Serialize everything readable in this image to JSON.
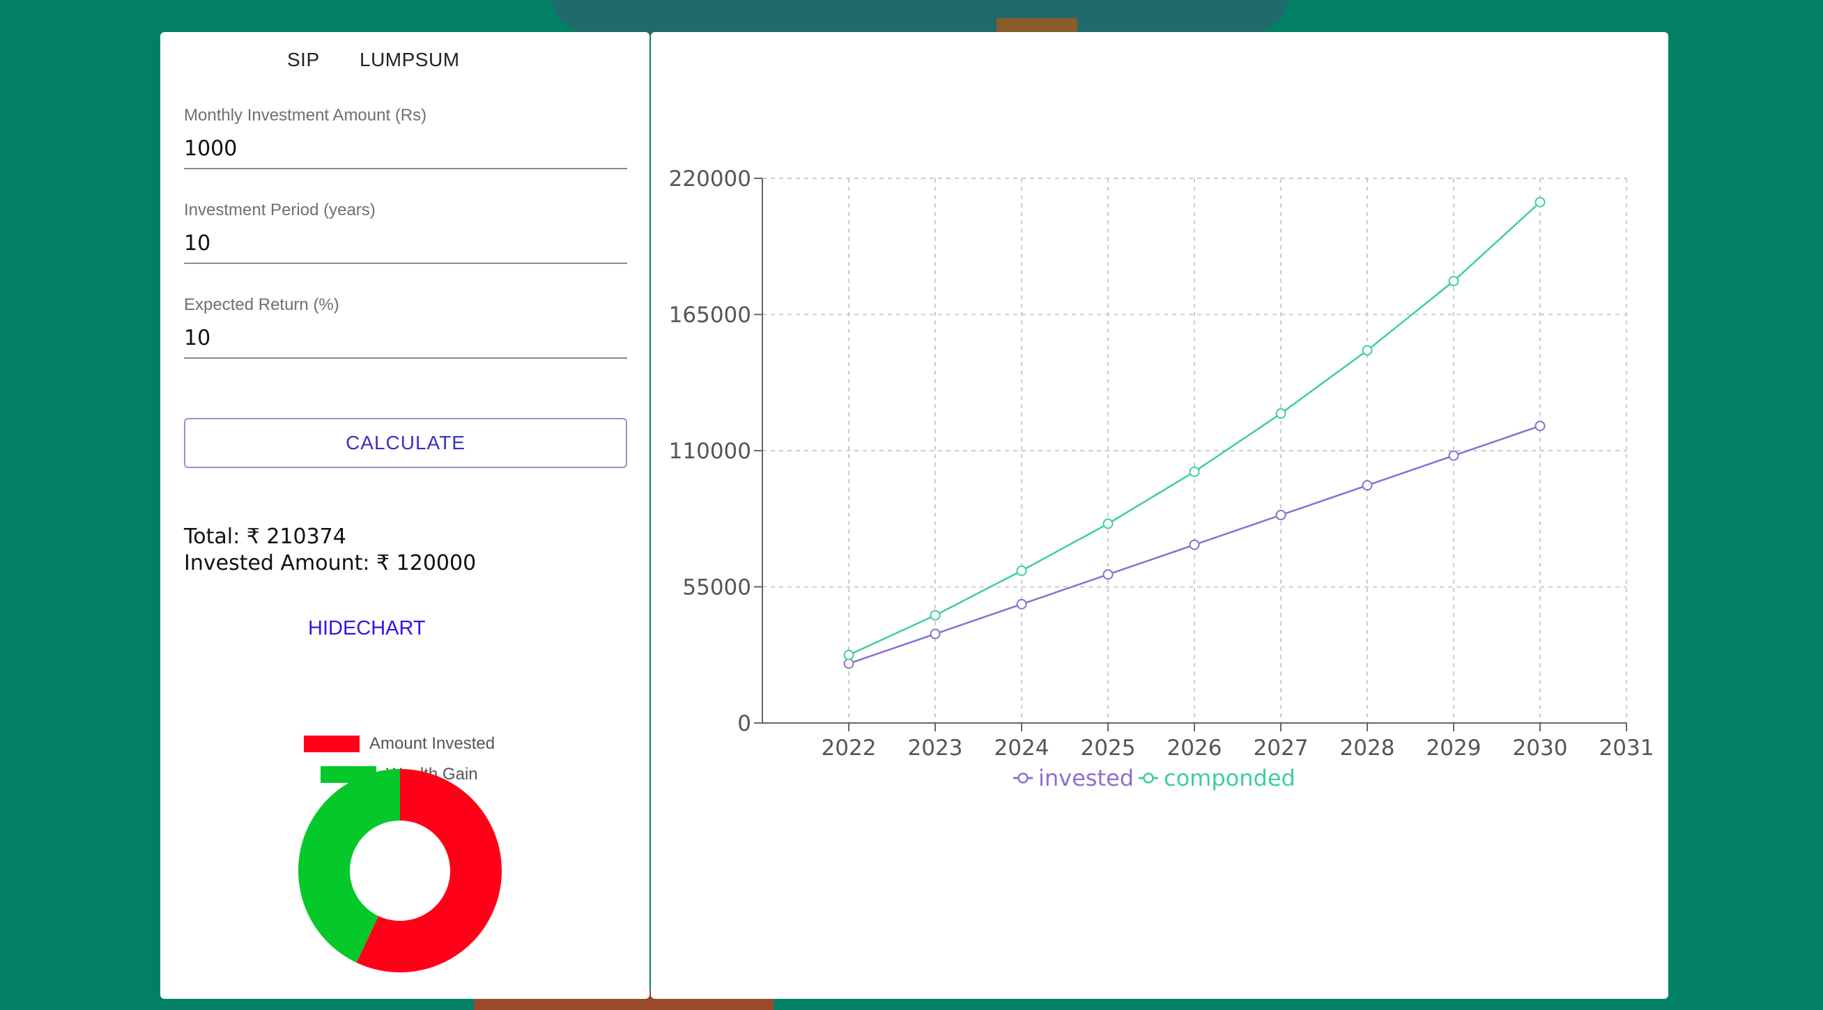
{
  "tabs": {
    "sip": "SIP",
    "lumpsum": "LUMPSUM"
  },
  "form": {
    "monthly_label": "Monthly Investment Amount (Rs)",
    "monthly_value": "1000",
    "period_label": "Investment Period (years)",
    "period_value": "10",
    "return_label": "Expected Return (%)",
    "return_value": "10",
    "calculate_label": "CALCULATE"
  },
  "results": {
    "total": "Total: ₹ 210374",
    "invested": "Invested Amount: ₹ 120000"
  },
  "hide_chart_label": "HIDECHART",
  "pie": {
    "legend": [
      {
        "label": "Amount Invested",
        "color": "#ff0019",
        "value": 120000
      },
      {
        "label": "Wealth Gain",
        "color": "#05c92a",
        "value": 90374
      }
    ]
  },
  "chart_data": {
    "type": "line",
    "x": [
      2022,
      2023,
      2024,
      2025,
      2026,
      2027,
      2028,
      2029,
      2030
    ],
    "xticks": [
      "2022",
      "2023",
      "2024",
      "2025",
      "2026",
      "2027",
      "2028",
      "2029",
      "2030",
      "2031"
    ],
    "yticks": [
      "0",
      "55000",
      "110000",
      "165000",
      "220000"
    ],
    "ylim": [
      0,
      220000
    ],
    "grid": true,
    "legend_position": "bottom",
    "series": [
      {
        "name": "invested",
        "color": "#8b6fd0",
        "values": [
          24000,
          36000,
          48000,
          60000,
          72000,
          84000,
          96000,
          108000,
          120000
        ]
      },
      {
        "name": "componded",
        "color": "#3ecf9a",
        "values": [
          27500,
          43500,
          61500,
          80500,
          101500,
          125000,
          150500,
          178500,
          210374
        ]
      }
    ]
  }
}
